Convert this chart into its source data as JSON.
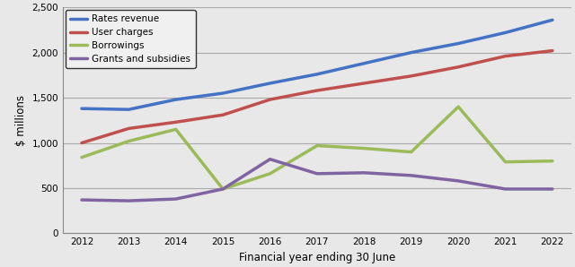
{
  "years": [
    2012,
    2013,
    2014,
    2015,
    2016,
    2017,
    2018,
    2019,
    2020,
    2021,
    2022
  ],
  "rates_revenue": [
    1380,
    1370,
    1480,
    1550,
    1660,
    1760,
    1880,
    2000,
    2100,
    2220,
    2360
  ],
  "user_charges": [
    1000,
    1160,
    1230,
    1310,
    1480,
    1580,
    1660,
    1740,
    1840,
    1960,
    2020
  ],
  "borrowings": [
    840,
    1020,
    1150,
    490,
    660,
    970,
    940,
    900,
    1400,
    790,
    800
  ],
  "grants_subsidies": [
    370,
    360,
    380,
    490,
    820,
    660,
    670,
    640,
    580,
    490,
    490
  ],
  "series_colors": {
    "rates_revenue": "#4472C4",
    "user_charges": "#C0504D",
    "borrowings": "#9BBB59",
    "grants_subsidies": "#8064A2"
  },
  "xlabel": "Financial year ending 30 June",
  "ylabel": "$ millions",
  "ylim": [
    0,
    2500
  ],
  "yticks": [
    0,
    500,
    1000,
    1500,
    2000,
    2500
  ],
  "legend_labels": [
    "Rates revenue",
    "User charges",
    "Borrowings",
    "Grants and subsidies"
  ],
  "background_color": "#e8e8e8",
  "plot_bg_color": "#e8e8e8",
  "grid_color": "#aaaaaa",
  "linewidth": 2.5
}
